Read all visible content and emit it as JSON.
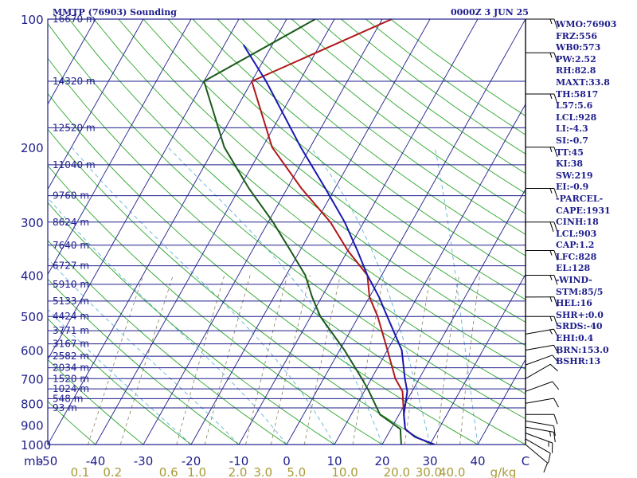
{
  "header": {
    "title": "MMTP (76903) Sounding",
    "datetime": "0000Z  3 JUN 25"
  },
  "indices": [
    "WMO:76903",
    "FRZ:556",
    "WB0:573",
    "PW:2.52",
    "RH:82.8",
    "MAXT:33.8",
    "TH:5817",
    "L57:5.6",
    "LCL:928",
    "LI:-4.3",
    "SI:-0.7",
    "TT:45",
    "KI:38",
    "SW:219",
    "EI:-0.9",
    "-PARCEL-",
    "CAPE:1931",
    "CINH:18",
    "LCL:903",
    "CAP:1.2",
    "LFC:828",
    "EL:128",
    "-WIND-",
    "STM:85/5",
    "HEL:16",
    "SHR+:0.0",
    "SRDS:-40",
    "EHI:0.4",
    "BRN:153.0",
    "BSHR:13"
  ],
  "colors": {
    "isobar": "#1e1e8c",
    "isotherm": "#1e1e8c",
    "dry_adiabat": "#2aa52a",
    "moist_adiabat": "#5fb4d8",
    "mixing_ratio": "#8a7f5a",
    "temperature": "#b01818",
    "dewpoint": "#1a5a1a",
    "parcel": "#1818b0",
    "wind_barb": "#000000"
  },
  "chart_data": {
    "type": "line",
    "title": "MMTP (76903) Sounding",
    "pressure_axis": {
      "unit": "mb",
      "ticks": [
        100,
        200,
        300,
        400,
        500,
        600,
        700,
        800,
        900,
        1000
      ],
      "range": [
        100,
        1000
      ],
      "scale": "log"
    },
    "temperature_axis": {
      "unit": "C",
      "ticks": [
        -50,
        -40,
        -30,
        -20,
        -10,
        0,
        10,
        20,
        30,
        40
      ],
      "unit_label": "C",
      "range": [
        -50,
        50
      ]
    },
    "mixing_ratio_axis": {
      "unit": "g/kg",
      "ticks": [
        "0.1",
        "0.2",
        "0.6",
        "1.0",
        "2.0",
        "3.0",
        "5.0",
        "10.0",
        "20.0",
        "30.0",
        "40.0"
      ]
    },
    "height_labels": [
      {
        "p": 100,
        "label": "16670 m"
      },
      {
        "p": 140,
        "label": "14320 m"
      },
      {
        "p": 180,
        "label": "12520 m"
      },
      {
        "p": 220,
        "label": "11040 m"
      },
      {
        "p": 260,
        "label": "9760 m"
      },
      {
        "p": 300,
        "label": "8624 m"
      },
      {
        "p": 340,
        "label": "7640 m"
      },
      {
        "p": 380,
        "label": "6727 m"
      },
      {
        "p": 420,
        "label": "5910 m"
      },
      {
        "p": 460,
        "label": "5133 m"
      },
      {
        "p": 500,
        "label": "4424 m"
      },
      {
        "p": 540,
        "label": "3771 m"
      },
      {
        "p": 580,
        "label": "3167 m"
      },
      {
        "p": 620,
        "label": "2582 m"
      },
      {
        "p": 660,
        "label": "2034 m"
      },
      {
        "p": 700,
        "label": "1520 m"
      },
      {
        "p": 740,
        "label": "1024 m"
      },
      {
        "p": 780,
        "label": "548 m"
      },
      {
        "p": 820,
        "label": "93 m"
      }
    ],
    "series": [
      {
        "id": "temperature",
        "points": [
          {
            "p": 1000,
            "t": 31
          },
          {
            "p": 960,
            "t": 26
          },
          {
            "p": 920,
            "t": 23
          },
          {
            "p": 850,
            "t": 21
          },
          {
            "p": 750,
            "t": 18
          },
          {
            "p": 700,
            "t": 15
          },
          {
            "p": 600,
            "t": 10
          },
          {
            "p": 500,
            "t": 4
          },
          {
            "p": 450,
            "t": 0
          },
          {
            "p": 400,
            "t": -3
          },
          {
            "p": 350,
            "t": -10
          },
          {
            "p": 300,
            "t": -17
          },
          {
            "p": 250,
            "t": -27
          },
          {
            "p": 200,
            "t": -38
          },
          {
            "p": 140,
            "t": -50
          },
          {
            "p": 100,
            "t": -28
          }
        ]
      },
      {
        "id": "dewpoint",
        "points": [
          {
            "p": 1000,
            "t": 24
          },
          {
            "p": 960,
            "t": 23
          },
          {
            "p": 920,
            "t": 22
          },
          {
            "p": 850,
            "t": 16
          },
          {
            "p": 750,
            "t": 11
          },
          {
            "p": 700,
            "t": 8
          },
          {
            "p": 600,
            "t": 1
          },
          {
            "p": 500,
            "t": -8
          },
          {
            "p": 450,
            "t": -12
          },
          {
            "p": 400,
            "t": -16
          },
          {
            "p": 350,
            "t": -22
          },
          {
            "p": 300,
            "t": -29
          },
          {
            "p": 250,
            "t": -38
          },
          {
            "p": 200,
            "t": -48
          },
          {
            "p": 140,
            "t": -60
          },
          {
            "p": 100,
            "t": -44
          }
        ]
      },
      {
        "id": "parcel",
        "points": [
          {
            "p": 1000,
            "t": 31
          },
          {
            "p": 960,
            "t": 26
          },
          {
            "p": 920,
            "t": 23
          },
          {
            "p": 850,
            "t": 21
          },
          {
            "p": 750,
            "t": 19
          },
          {
            "p": 700,
            "t": 17
          },
          {
            "p": 600,
            "t": 13
          },
          {
            "p": 500,
            "t": 6
          },
          {
            "p": 450,
            "t": 2
          },
          {
            "p": 400,
            "t": -3
          },
          {
            "p": 350,
            "t": -8
          },
          {
            "p": 300,
            "t": -14
          },
          {
            "p": 250,
            "t": -22
          },
          {
            "p": 200,
            "t": -32
          },
          {
            "p": 140,
            "t": -47
          },
          {
            "p": 115,
            "t": -56
          }
        ]
      }
    ],
    "wind_barbs": [
      {
        "p": 1000,
        "dir": 130,
        "spd": 10
      },
      {
        "p": 970,
        "dir": 120,
        "spd": 10
      },
      {
        "p": 940,
        "dir": 110,
        "spd": 15
      },
      {
        "p": 910,
        "dir": 100,
        "spd": 15
      },
      {
        "p": 880,
        "dir": 100,
        "spd": 10
      },
      {
        "p": 850,
        "dir": 90,
        "spd": 10
      },
      {
        "p": 800,
        "dir": 80,
        "spd": 10
      },
      {
        "p": 750,
        "dir": 70,
        "spd": 10
      },
      {
        "p": 700,
        "dir": 60,
        "spd": 10
      },
      {
        "p": 650,
        "dir": 70,
        "spd": 10
      },
      {
        "p": 600,
        "dir": 80,
        "spd": 10
      },
      {
        "p": 550,
        "dir": 80,
        "spd": 15
      },
      {
        "p": 500,
        "dir": 90,
        "spd": 15
      },
      {
        "p": 450,
        "dir": 90,
        "spd": 15
      },
      {
        "p": 400,
        "dir": 90,
        "spd": 15
      },
      {
        "p": 350,
        "dir": 90,
        "spd": 15
      },
      {
        "p": 300,
        "dir": 90,
        "spd": 20
      },
      {
        "p": 250,
        "dir": 90,
        "spd": 15
      },
      {
        "p": 200,
        "dir": 90,
        "spd": 15
      },
      {
        "p": 150,
        "dir": 90,
        "spd": 15
      },
      {
        "p": 120,
        "dir": 90,
        "spd": 15
      },
      {
        "p": 100,
        "dir": 90,
        "spd": 15
      }
    ]
  }
}
